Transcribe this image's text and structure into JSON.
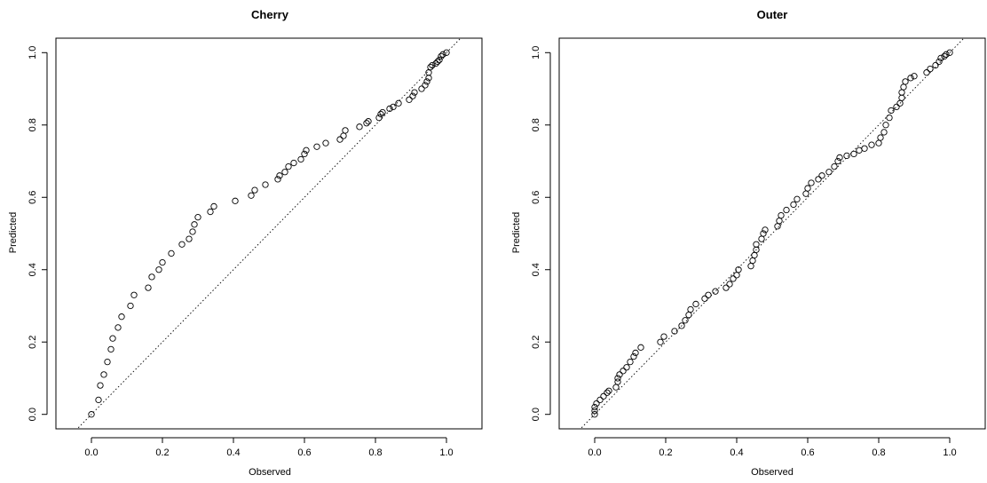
{
  "chart_data": [
    {
      "type": "scatter",
      "title": "Cherry",
      "xlabel": "Observed",
      "ylabel": "Predicted",
      "xlim": [
        -0.1,
        1.1
      ],
      "ylim": [
        -0.04,
        1.04
      ],
      "xticks": [
        "0.0",
        "0.2",
        "0.4",
        "0.6",
        "0.8",
        "1.0"
      ],
      "yticks": [
        "0.0",
        "0.2",
        "0.4",
        "0.6",
        "0.8",
        "1.0"
      ],
      "reference_line": "y = x (dotted)",
      "points": [
        [
          0.0,
          0.0
        ],
        [
          0.02,
          0.04
        ],
        [
          0.025,
          0.08
        ],
        [
          0.035,
          0.11
        ],
        [
          0.045,
          0.145
        ],
        [
          0.055,
          0.18
        ],
        [
          0.06,
          0.21
        ],
        [
          0.075,
          0.24
        ],
        [
          0.085,
          0.27
        ],
        [
          0.11,
          0.3
        ],
        [
          0.12,
          0.33
        ],
        [
          0.16,
          0.35
        ],
        [
          0.17,
          0.38
        ],
        [
          0.19,
          0.4
        ],
        [
          0.2,
          0.42
        ],
        [
          0.225,
          0.445
        ],
        [
          0.255,
          0.47
        ],
        [
          0.275,
          0.485
        ],
        [
          0.285,
          0.505
        ],
        [
          0.29,
          0.525
        ],
        [
          0.3,
          0.545
        ],
        [
          0.335,
          0.56
        ],
        [
          0.345,
          0.575
        ],
        [
          0.405,
          0.59
        ],
        [
          0.45,
          0.605
        ],
        [
          0.46,
          0.62
        ],
        [
          0.49,
          0.635
        ],
        [
          0.525,
          0.65
        ],
        [
          0.53,
          0.66
        ],
        [
          0.545,
          0.67
        ],
        [
          0.555,
          0.685
        ],
        [
          0.57,
          0.695
        ],
        [
          0.59,
          0.705
        ],
        [
          0.6,
          0.72
        ],
        [
          0.605,
          0.73
        ],
        [
          0.635,
          0.74
        ],
        [
          0.66,
          0.75
        ],
        [
          0.7,
          0.76
        ],
        [
          0.71,
          0.77
        ],
        [
          0.715,
          0.785
        ],
        [
          0.755,
          0.795
        ],
        [
          0.775,
          0.805
        ],
        [
          0.78,
          0.81
        ],
        [
          0.81,
          0.82
        ],
        [
          0.815,
          0.83
        ],
        [
          0.82,
          0.835
        ],
        [
          0.84,
          0.845
        ],
        [
          0.85,
          0.85
        ],
        [
          0.865,
          0.86
        ],
        [
          0.895,
          0.87
        ],
        [
          0.905,
          0.88
        ],
        [
          0.91,
          0.89
        ],
        [
          0.93,
          0.9
        ],
        [
          0.94,
          0.91
        ],
        [
          0.945,
          0.92
        ],
        [
          0.95,
          0.93
        ],
        [
          0.95,
          0.945
        ],
        [
          0.955,
          0.96
        ],
        [
          0.96,
          0.965
        ],
        [
          0.97,
          0.97
        ],
        [
          0.975,
          0.975
        ],
        [
          0.98,
          0.98
        ],
        [
          0.985,
          0.99
        ],
        [
          0.99,
          0.995
        ],
        [
          1.0,
          1.0
        ]
      ]
    },
    {
      "type": "scatter",
      "title": "Outer",
      "xlabel": "Observed",
      "ylabel": "Predicted",
      "xlim": [
        -0.1,
        1.1
      ],
      "ylim": [
        -0.04,
        1.04
      ],
      "xticks": [
        "0.0",
        "0.2",
        "0.4",
        "0.6",
        "0.8",
        "1.0"
      ],
      "yticks": [
        "0.0",
        "0.2",
        "0.4",
        "0.6",
        "0.8",
        "1.0"
      ],
      "reference_line": "y = x (dotted)",
      "points": [
        [
          0.0,
          0.0
        ],
        [
          0.0,
          0.01
        ],
        [
          0.0,
          0.02
        ],
        [
          0.005,
          0.03
        ],
        [
          0.015,
          0.04
        ],
        [
          0.025,
          0.05
        ],
        [
          0.035,
          0.06
        ],
        [
          0.04,
          0.065
        ],
        [
          0.06,
          0.075
        ],
        [
          0.065,
          0.09
        ],
        [
          0.065,
          0.1
        ],
        [
          0.07,
          0.11
        ],
        [
          0.08,
          0.12
        ],
        [
          0.09,
          0.13
        ],
        [
          0.1,
          0.145
        ],
        [
          0.11,
          0.16
        ],
        [
          0.115,
          0.17
        ],
        [
          0.13,
          0.185
        ],
        [
          0.185,
          0.2
        ],
        [
          0.195,
          0.215
        ],
        [
          0.225,
          0.23
        ],
        [
          0.245,
          0.245
        ],
        [
          0.255,
          0.26
        ],
        [
          0.265,
          0.275
        ],
        [
          0.27,
          0.29
        ],
        [
          0.285,
          0.305
        ],
        [
          0.31,
          0.32
        ],
        [
          0.32,
          0.33
        ],
        [
          0.34,
          0.34
        ],
        [
          0.37,
          0.35
        ],
        [
          0.38,
          0.36
        ],
        [
          0.39,
          0.375
        ],
        [
          0.4,
          0.385
        ],
        [
          0.405,
          0.4
        ],
        [
          0.44,
          0.41
        ],
        [
          0.445,
          0.425
        ],
        [
          0.45,
          0.44
        ],
        [
          0.455,
          0.455
        ],
        [
          0.455,
          0.47
        ],
        [
          0.47,
          0.485
        ],
        [
          0.475,
          0.5
        ],
        [
          0.48,
          0.51
        ],
        [
          0.515,
          0.52
        ],
        [
          0.52,
          0.535
        ],
        [
          0.525,
          0.55
        ],
        [
          0.54,
          0.565
        ],
        [
          0.56,
          0.58
        ],
        [
          0.57,
          0.595
        ],
        [
          0.595,
          0.61
        ],
        [
          0.6,
          0.625
        ],
        [
          0.61,
          0.64
        ],
        [
          0.63,
          0.65
        ],
        [
          0.64,
          0.66
        ],
        [
          0.66,
          0.67
        ],
        [
          0.675,
          0.685
        ],
        [
          0.685,
          0.7
        ],
        [
          0.69,
          0.71
        ],
        [
          0.71,
          0.715
        ],
        [
          0.73,
          0.72
        ],
        [
          0.745,
          0.73
        ],
        [
          0.76,
          0.735
        ],
        [
          0.78,
          0.745
        ],
        [
          0.8,
          0.75
        ],
        [
          0.805,
          0.765
        ],
        [
          0.815,
          0.78
        ],
        [
          0.82,
          0.8
        ],
        [
          0.83,
          0.82
        ],
        [
          0.835,
          0.84
        ],
        [
          0.85,
          0.85
        ],
        [
          0.86,
          0.86
        ],
        [
          0.865,
          0.875
        ],
        [
          0.865,
          0.89
        ],
        [
          0.87,
          0.905
        ],
        [
          0.875,
          0.92
        ],
        [
          0.89,
          0.93
        ],
        [
          0.9,
          0.935
        ],
        [
          0.935,
          0.945
        ],
        [
          0.945,
          0.955
        ],
        [
          0.96,
          0.965
        ],
        [
          0.97,
          0.975
        ],
        [
          0.975,
          0.985
        ],
        [
          0.985,
          0.99
        ],
        [
          0.99,
          0.995
        ],
        [
          1.0,
          1.0
        ]
      ]
    }
  ]
}
